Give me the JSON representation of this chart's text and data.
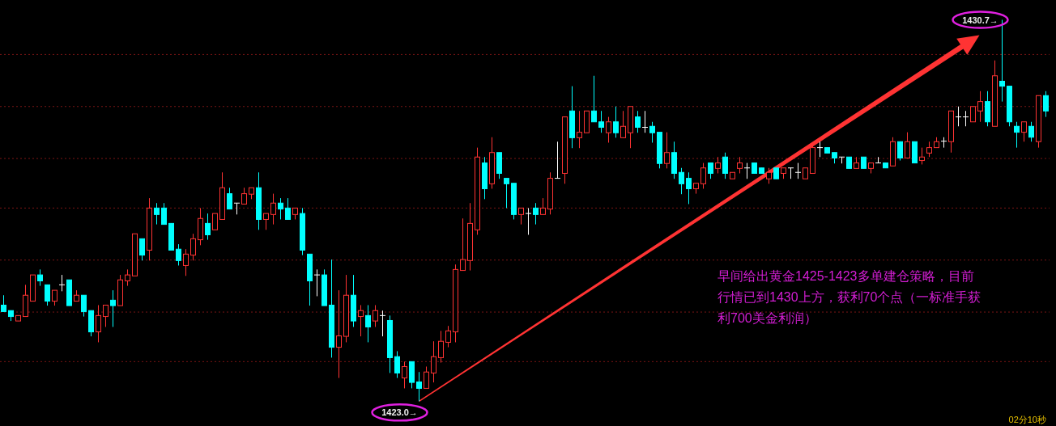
{
  "chart_data": {
    "type": "candlestick",
    "categories": [
      null,
      null,
      null,
      null,
      null,
      null,
      null,
      null,
      null,
      null,
      null,
      null,
      null,
      null,
      null,
      null,
      null,
      null,
      null,
      null,
      null,
      null,
      null,
      null,
      null,
      null,
      null,
      null,
      null,
      null,
      null,
      null,
      null,
      null,
      null,
      null,
      null,
      null,
      null,
      null,
      null,
      null,
      null,
      null,
      null,
      null,
      null,
      null,
      null,
      null,
      null,
      null,
      null,
      null,
      null,
      null,
      null,
      null,
      null,
      null,
      null,
      null,
      null,
      null,
      null,
      null,
      null,
      null,
      null,
      null,
      null,
      null,
      null,
      null,
      null,
      null,
      null,
      null,
      null,
      null,
      null,
      null,
      null,
      null,
      null,
      null,
      null,
      null,
      null,
      null,
      null,
      null,
      null,
      null,
      null,
      null,
      null,
      null,
      null,
      null,
      null,
      null,
      null,
      null,
      null,
      null,
      null,
      null,
      null,
      null,
      null,
      null,
      null,
      null,
      null,
      null,
      null,
      null,
      null,
      null,
      null,
      null,
      null,
      null,
      null,
      null,
      null,
      null,
      null,
      null,
      null,
      null,
      null,
      null,
      null,
      null,
      null,
      null,
      null,
      null,
      null,
      null,
      null,
      null
    ],
    "ohlc": [
      [
        1424.94,
        1425.14,
        1424.81,
        1424.81
      ],
      [
        1424.83,
        1424.83,
        1424.62,
        1424.71
      ],
      [
        1424.62,
        1424.73,
        1424.62,
        1424.73
      ],
      [
        1424.71,
        1425.35,
        1424.71,
        1425.14
      ],
      [
        1425.02,
        1425.55,
        1425.02,
        1425.55
      ],
      [
        1425.55,
        1425.66,
        1425.33,
        1425.43
      ],
      [
        1425.35,
        1425.35,
        1424.93,
        1425.02
      ],
      [
        1425.02,
        1425.24,
        1424.93,
        1425.24
      ],
      [
        1425.35,
        1425.55,
        1425.22,
        1425.35
      ],
      [
        1425.45,
        1425.45,
        1424.93,
        1424.93
      ],
      [
        1425.02,
        1425.24,
        1425.02,
        1425.14
      ],
      [
        1425.14,
        1425.14,
        1424.71,
        1424.81
      ],
      [
        1424.83,
        1424.83,
        1424.31,
        1424.4
      ],
      [
        1424.4,
        1424.94,
        1424.19,
        1424.73
      ],
      [
        1424.71,
        1424.94,
        1424.5,
        1424.94
      ],
      [
        1425.04,
        1425.24,
        1424.5,
        1424.93
      ],
      [
        1424.93,
        1425.55,
        1424.93,
        1425.45
      ],
      [
        1425.43,
        1425.66,
        1425.33,
        1425.55
      ],
      [
        1425.53,
        1426.38,
        1425.53,
        1426.38
      ],
      [
        1426.28,
        1426.28,
        1425.84,
        1425.95
      ],
      [
        1426.05,
        1427.1,
        1425.84,
        1426.9
      ],
      [
        1426.9,
        1427.0,
        1426.57,
        1426.77
      ],
      [
        1426.9,
        1427.0,
        1426.57,
        1426.57
      ],
      [
        1426.59,
        1426.59,
        1426.05,
        1426.05
      ],
      [
        1426.07,
        1426.17,
        1425.74,
        1425.84
      ],
      [
        1425.74,
        1426.07,
        1425.53,
        1425.97
      ],
      [
        1425.95,
        1426.38,
        1425.84,
        1426.28
      ],
      [
        1426.26,
        1426.9,
        1426.15,
        1426.69
      ],
      [
        1426.59,
        1426.79,
        1426.26,
        1426.36
      ],
      [
        1426.46,
        1426.79,
        1426.46,
        1426.79
      ],
      [
        1426.67,
        1427.62,
        1426.67,
        1427.31
      ],
      [
        1427.19,
        1427.31,
        1426.88,
        1426.88
      ],
      [
        1427.0,
        1427.0,
        1426.77,
        1427.0
      ],
      [
        1426.98,
        1427.31,
        1426.98,
        1427.19
      ],
      [
        1427.18,
        1427.31,
        1427.08,
        1427.31
      ],
      [
        1427.31,
        1427.62,
        1426.46,
        1426.67
      ],
      [
        1426.67,
        1426.79,
        1426.46,
        1426.79
      ],
      [
        1426.77,
        1427.19,
        1426.57,
        1427.0
      ],
      [
        1427.0,
        1427.1,
        1426.67,
        1426.88
      ],
      [
        1426.9,
        1427.1,
        1426.67,
        1426.67
      ],
      [
        1426.77,
        1426.9,
        1426.67,
        1426.9
      ],
      [
        1426.79,
        1426.9,
        1425.95,
        1426.05
      ],
      [
        1425.97,
        1425.97,
        1424.93,
        1425.43
      ],
      [
        1425.55,
        1425.66,
        1425.12,
        1425.55
      ],
      [
        1425.55,
        1425.66,
        1424.93,
        1424.93
      ],
      [
        1424.94,
        1425.86,
        1423.88,
        1424.09
      ],
      [
        1424.09,
        1425.24,
        1423.47,
        1424.32
      ],
      [
        1424.31,
        1425.55,
        1424.19,
        1425.14
      ],
      [
        1425.14,
        1425.55,
        1424.5,
        1424.62
      ],
      [
        1424.71,
        1424.94,
        1424.31,
        1424.83
      ],
      [
        1424.73,
        1424.94,
        1424.19,
        1424.5
      ],
      [
        1424.62,
        1424.94,
        1424.5,
        1424.83
      ],
      [
        1424.73,
        1424.83,
        1424.31,
        1424.73
      ],
      [
        1424.63,
        1424.73,
        1423.57,
        1423.88
      ],
      [
        1423.9,
        1424.01,
        1423.47,
        1423.57
      ],
      [
        1423.47,
        1423.8,
        1423.26,
        1423.7
      ],
      [
        1423.8,
        1423.8,
        1423.26,
        1423.38
      ],
      [
        1423.39,
        1423.59,
        1423.0,
        1423.26
      ],
      [
        1423.26,
        1423.7,
        1423.26,
        1423.59
      ],
      [
        1423.57,
        1424.21,
        1423.38,
        1423.9
      ],
      [
        1423.88,
        1424.42,
        1423.78,
        1424.21
      ],
      [
        1424.19,
        1424.52,
        1424.09,
        1424.42
      ],
      [
        1424.4,
        1425.76,
        1424.19,
        1425.66
      ],
      [
        1425.64,
        1426.69,
        1425.64,
        1425.86
      ],
      [
        1425.84,
        1427.0,
        1425.64,
        1426.59
      ],
      [
        1426.46,
        1428.12,
        1426.36,
        1427.93
      ],
      [
        1427.81,
        1427.93,
        1427.08,
        1427.29
      ],
      [
        1427.39,
        1428.33,
        1427.29,
        1428.02
      ],
      [
        1428.02,
        1428.02,
        1427.49,
        1427.6
      ],
      [
        1427.5,
        1427.5,
        1426.9,
        1427.39
      ],
      [
        1427.4,
        1427.4,
        1426.67,
        1426.77
      ],
      [
        1426.77,
        1426.9,
        1426.57,
        1426.9
      ],
      [
        1426.79,
        1426.9,
        1426.36,
        1426.79
      ],
      [
        1426.9,
        1427.0,
        1426.57,
        1426.77
      ],
      [
        1426.77,
        1427.1,
        1426.77,
        1426.9
      ],
      [
        1426.88,
        1427.62,
        1426.77,
        1427.5
      ],
      [
        1427.5,
        1428.24,
        1427.5,
        1427.5
      ],
      [
        1427.6,
        1428.74,
        1427.39,
        1428.74
      ],
      [
        1428.86,
        1429.36,
        1428.11,
        1428.32
      ],
      [
        1428.32,
        1428.86,
        1428.11,
        1428.43
      ],
      [
        1428.42,
        1428.86,
        1428.42,
        1428.86
      ],
      [
        1428.86,
        1429.57,
        1428.64,
        1428.64
      ],
      [
        1428.64,
        1428.86,
        1428.42,
        1428.53
      ],
      [
        1428.42,
        1428.74,
        1428.22,
        1428.64
      ],
      [
        1428.64,
        1428.95,
        1428.32,
        1428.42
      ],
      [
        1428.32,
        1428.86,
        1428.32,
        1428.55
      ],
      [
        1428.42,
        1428.95,
        1428.11,
        1428.95
      ],
      [
        1428.74,
        1428.86,
        1428.42,
        1428.53
      ],
      [
        1428.53,
        1428.86,
        1428.42,
        1428.53
      ],
      [
        1428.55,
        1428.64,
        1428.22,
        1428.42
      ],
      [
        1428.43,
        1428.43,
        1427.7,
        1427.8
      ],
      [
        1427.8,
        1428.43,
        1427.7,
        1428.02
      ],
      [
        1428.02,
        1428.24,
        1427.49,
        1427.6
      ],
      [
        1427.62,
        1427.71,
        1427.18,
        1427.39
      ],
      [
        1427.5,
        1427.62,
        1426.98,
        1427.29
      ],
      [
        1427.29,
        1427.4,
        1427.19,
        1427.4
      ],
      [
        1427.39,
        1427.81,
        1427.29,
        1427.71
      ],
      [
        1427.81,
        1427.81,
        1427.49,
        1427.6
      ],
      [
        1427.7,
        1427.93,
        1427.6,
        1427.81
      ],
      [
        1427.93,
        1428.02,
        1427.49,
        1427.6
      ],
      [
        1427.49,
        1427.62,
        1427.49,
        1427.62
      ],
      [
        1427.7,
        1427.93,
        1427.6,
        1427.81
      ],
      [
        1427.71,
        1427.81,
        1427.49,
        1427.71
      ],
      [
        1427.81,
        1427.81,
        1427.6,
        1427.6
      ],
      [
        1427.71,
        1427.71,
        1427.6,
        1427.6
      ],
      [
        1427.49,
        1427.71,
        1427.39,
        1427.62
      ],
      [
        1427.71,
        1427.71,
        1427.49,
        1427.49
      ],
      [
        1427.6,
        1427.71,
        1427.49,
        1427.71
      ],
      [
        1427.71,
        1427.71,
        1427.49,
        1427.71
      ],
      [
        1427.62,
        1427.81,
        1427.49,
        1427.62
      ],
      [
        1427.49,
        1427.71,
        1427.49,
        1427.71
      ],
      [
        1427.6,
        1428.22,
        1427.6,
        1428.12
      ],
      [
        1428.12,
        1428.24,
        1427.93,
        1428.12
      ],
      [
        1428.12,
        1428.12,
        1428.01,
        1428.01
      ],
      [
        1428.02,
        1428.02,
        1427.8,
        1427.91
      ],
      [
        1427.93,
        1427.93,
        1427.8,
        1427.93
      ],
      [
        1427.93,
        1427.93,
        1427.7,
        1427.7
      ],
      [
        1427.7,
        1427.93,
        1427.7,
        1427.81
      ],
      [
        1427.93,
        1427.93,
        1427.7,
        1427.7
      ],
      [
        1427.7,
        1427.81,
        1427.6,
        1427.81
      ],
      [
        1427.81,
        1427.93,
        1427.81,
        1427.81
      ],
      [
        1427.81,
        1427.81,
        1427.71,
        1427.71
      ],
      [
        1427.75,
        1428.33,
        1427.75,
        1428.24
      ],
      [
        1428.24,
        1428.24,
        1427.86,
        1427.91
      ],
      [
        1427.91,
        1428.43,
        1427.91,
        1428.24
      ],
      [
        1428.24,
        1428.24,
        1427.81,
        1427.81
      ],
      [
        1427.86,
        1428.12,
        1427.78,
        1427.93
      ],
      [
        1428.01,
        1428.24,
        1427.93,
        1428.12
      ],
      [
        1428.12,
        1428.33,
        1428.12,
        1428.24
      ],
      [
        1428.25,
        1428.33,
        1428.12,
        1428.25
      ],
      [
        1428.24,
        1428.86,
        1428.02,
        1428.86
      ],
      [
        1428.74,
        1428.95,
        1428.55,
        1428.74
      ],
      [
        1428.74,
        1428.86,
        1428.55,
        1428.74
      ],
      [
        1428.64,
        1428.95,
        1428.64,
        1428.95
      ],
      [
        1428.86,
        1429.26,
        1428.64,
        1429.05
      ],
      [
        1429.05,
        1429.26,
        1428.55,
        1428.64
      ],
      [
        1428.55,
        1429.88,
        1428.55,
        1429.57
      ],
      [
        1429.46,
        1430.7,
        1429.05,
        1429.36
      ],
      [
        1429.36,
        1429.36,
        1428.55,
        1428.64
      ],
      [
        1428.55,
        1428.64,
        1428.12,
        1428.43
      ],
      [
        1428.43,
        1428.64,
        1428.24,
        1428.64
      ],
      [
        1428.55,
        1428.64,
        1428.24,
        1428.33
      ],
      [
        1428.24,
        1429.17,
        1428.12,
        1429.17
      ],
      [
        1429.17,
        1429.26,
        1428.74,
        1428.86
      ]
    ],
    "colors": [
      "#00ffff",
      "#00ffff",
      "#ff3333",
      "#ff3333",
      "#ff3333",
      "#00ffff",
      "#00ffff",
      "#ff3333",
      "#ffffff",
      "#00ffff",
      "#ff3333",
      "#00ffff",
      "#00ffff",
      "#ff3333",
      "#ff3333",
      "#00ffff",
      "#ff3333",
      "#ff3333",
      "#ff3333",
      "#00ffff",
      "#ff3333",
      "#00ffff",
      "#00ffff",
      "#00ffff",
      "#00ffff",
      "#ff3333",
      "#ff3333",
      "#ff3333",
      "#00ffff",
      "#ff3333",
      "#ff3333",
      "#00ffff",
      "#ffffff",
      "#ff3333",
      "#ff3333",
      "#00ffff",
      "#ff3333",
      "#ff3333",
      "#00ffff",
      "#00ffff",
      "#ff3333",
      "#00ffff",
      "#00ffff",
      "#ffffff",
      "#00ffff",
      "#00ffff",
      "#ff3333",
      "#ff3333",
      "#00ffff",
      "#ff3333",
      "#00ffff",
      "#ff3333",
      "#ffffff",
      "#00ffff",
      "#00ffff",
      "#ff3333",
      "#00ffff",
      "#00ffff",
      "#ff3333",
      "#ff3333",
      "#ff3333",
      "#ff3333",
      "#ff3333",
      "#ff3333",
      "#ff3333",
      "#ff3333",
      "#00ffff",
      "#ff3333",
      "#00ffff",
      "#00ffff",
      "#00ffff",
      "#ff3333",
      "#ffffff",
      "#00ffff",
      "#ff3333",
      "#ff3333",
      "#ffffff",
      "#ff3333",
      "#00ffff",
      "#ff3333",
      "#ff3333",
      "#00ffff",
      "#00ffff",
      "#ff3333",
      "#00ffff",
      "#ff3333",
      "#ff3333",
      "#00ffff",
      "#ffffff",
      "#00ffff",
      "#00ffff",
      "#ff3333",
      "#00ffff",
      "#00ffff",
      "#00ffff",
      "#ff3333",
      "#ff3333",
      "#00ffff",
      "#ff3333",
      "#00ffff",
      "#ff3333",
      "#ff3333",
      "#ffffff",
      "#00ffff",
      "#00ffff",
      "#ff3333",
      "#00ffff",
      "#ff3333",
      "#ffffff",
      "#ffffff",
      "#ff3333",
      "#ff3333",
      "#ffffff",
      "#00ffff",
      "#00ffff",
      "#ffffff",
      "#00ffff",
      "#ff3333",
      "#00ffff",
      "#ff3333",
      "#ffffff",
      "#00ffff",
      "#ff3333",
      "#00ffff",
      "#ff3333",
      "#00ffff",
      "#ff3333",
      "#ff3333",
      "#ff3333",
      "#ffffff",
      "#ff3333",
      "#ffffff",
      "#ffffff",
      "#ff3333",
      "#ff3333",
      "#00ffff",
      "#ff3333",
      "#00ffff",
      "#00ffff",
      "#00ffff",
      "#ff3333",
      "#00ffff",
      "#ff3333",
      "#00ffff"
    ],
    "ylim": [
      1422.5,
      1431.1
    ],
    "yticks": [
      {
        "value": 1430.0,
        "label": null
      },
      {
        "value": 1428.95,
        "label": null
      },
      {
        "value": 1427.9,
        "label": null
      },
      {
        "value": 1426.9,
        "label": null
      },
      {
        "value": 1425.85,
        "label": null
      },
      {
        "value": 1424.8,
        "label": null
      },
      {
        "value": 1423.8,
        "label": null
      }
    ],
    "grid": "y",
    "annotations": [
      "1430.7→",
      "1423.0→",
      "早间给出黄金1425-1423多单建仓策略，目前行情已到1430上方，获利70个点（一标准手获利700美金利润）",
      "02分10秒"
    ]
  }
}
